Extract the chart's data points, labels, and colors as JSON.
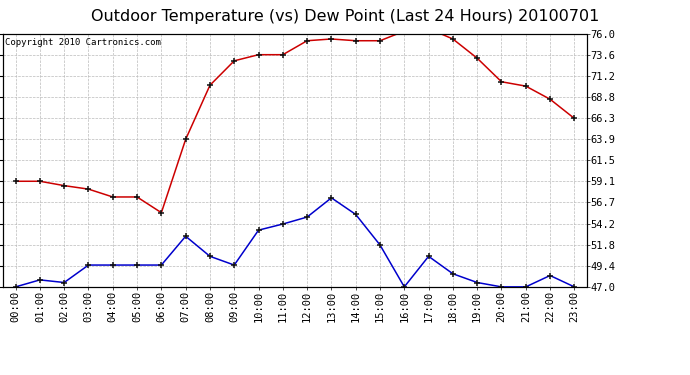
{
  "title": "Outdoor Temperature (vs) Dew Point (Last 24 Hours) 20100701",
  "copyright": "Copyright 2010 Cartronics.com",
  "hours": [
    0,
    1,
    2,
    3,
    4,
    5,
    6,
    7,
    8,
    9,
    10,
    11,
    12,
    13,
    14,
    15,
    16,
    17,
    18,
    19,
    20,
    21,
    22,
    23
  ],
  "temp": [
    59.1,
    59.1,
    58.6,
    58.2,
    57.3,
    57.3,
    55.5,
    63.9,
    70.1,
    72.9,
    73.6,
    73.6,
    75.2,
    75.4,
    75.2,
    75.2,
    76.3,
    76.6,
    75.4,
    73.2,
    70.5,
    70.0,
    68.5,
    66.3
  ],
  "dew": [
    47.0,
    47.8,
    47.5,
    49.5,
    49.5,
    49.5,
    49.5,
    52.8,
    50.5,
    49.5,
    53.5,
    54.2,
    55.0,
    57.2,
    55.3,
    51.8,
    47.0,
    50.5,
    48.5,
    47.5,
    47.0,
    47.0,
    48.3,
    47.0
  ],
  "temp_color": "#cc0000",
  "dew_color": "#0000cc",
  "bg_color": "#ffffff",
  "grid_color": "#bbbbbb",
  "yticks": [
    47.0,
    49.4,
    51.8,
    54.2,
    56.7,
    59.1,
    61.5,
    63.9,
    66.3,
    68.8,
    71.2,
    73.6,
    76.0
  ],
  "title_fontsize": 11.5,
  "copy_fontsize": 6.5,
  "tick_fontsize": 7.5
}
